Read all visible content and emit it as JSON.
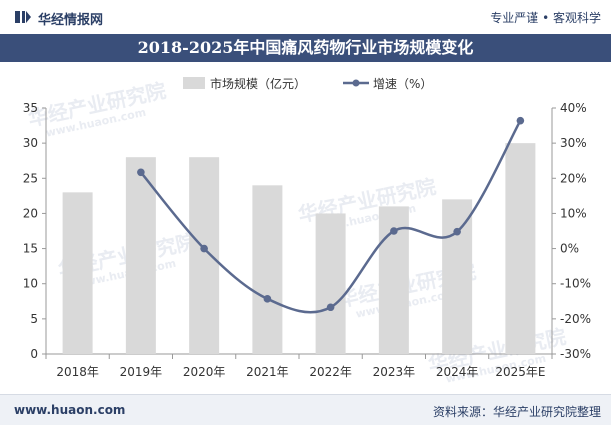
{
  "header": {
    "brand": "华经情报网",
    "slogan": "专业严谨 • 客观科学"
  },
  "title": "2018-2025年中国痛风药物行业市场规模变化",
  "footer": {
    "url": "www.huaon.com",
    "source": "资料来源：华经产业研究院整理"
  },
  "watermark": {
    "text": "华经产业研究院",
    "url": "www.huaon.com"
  },
  "colors": {
    "bar": "#d9d9d9",
    "line": "#5b6a8f",
    "title_bg": "#3a4f7a",
    "brand": "#2b3f66"
  },
  "chart_data": {
    "type": "bar",
    "categories": [
      "2018年",
      "2019年",
      "2020年",
      "2021年",
      "2022年",
      "2023年",
      "2024年",
      "2025年E"
    ],
    "series": [
      {
        "name": "市场规模（亿元）",
        "type": "bar",
        "axis": "left",
        "values": [
          23,
          28,
          28,
          24,
          20,
          21,
          22,
          30
        ]
      },
      {
        "name": "增速（%）",
        "type": "line",
        "axis": "right",
        "values": [
          null,
          21.7,
          0.0,
          -14.3,
          -16.7,
          5.0,
          4.8,
          36.4
        ]
      }
    ],
    "y_left": {
      "min": 0,
      "max": 35,
      "step": 5,
      "ticks": [
        "0",
        "5",
        "10",
        "15",
        "20",
        "25",
        "30",
        "35"
      ]
    },
    "y_right": {
      "min": -30,
      "max": 40,
      "step": 10,
      "ticks": [
        "-30%",
        "-20%",
        "-10%",
        "0%",
        "10%",
        "20%",
        "30%",
        "40%"
      ]
    },
    "legend": [
      "市场规模（亿元）",
      "增速（%）"
    ],
    "legend_position": "top-center",
    "grid": false
  }
}
